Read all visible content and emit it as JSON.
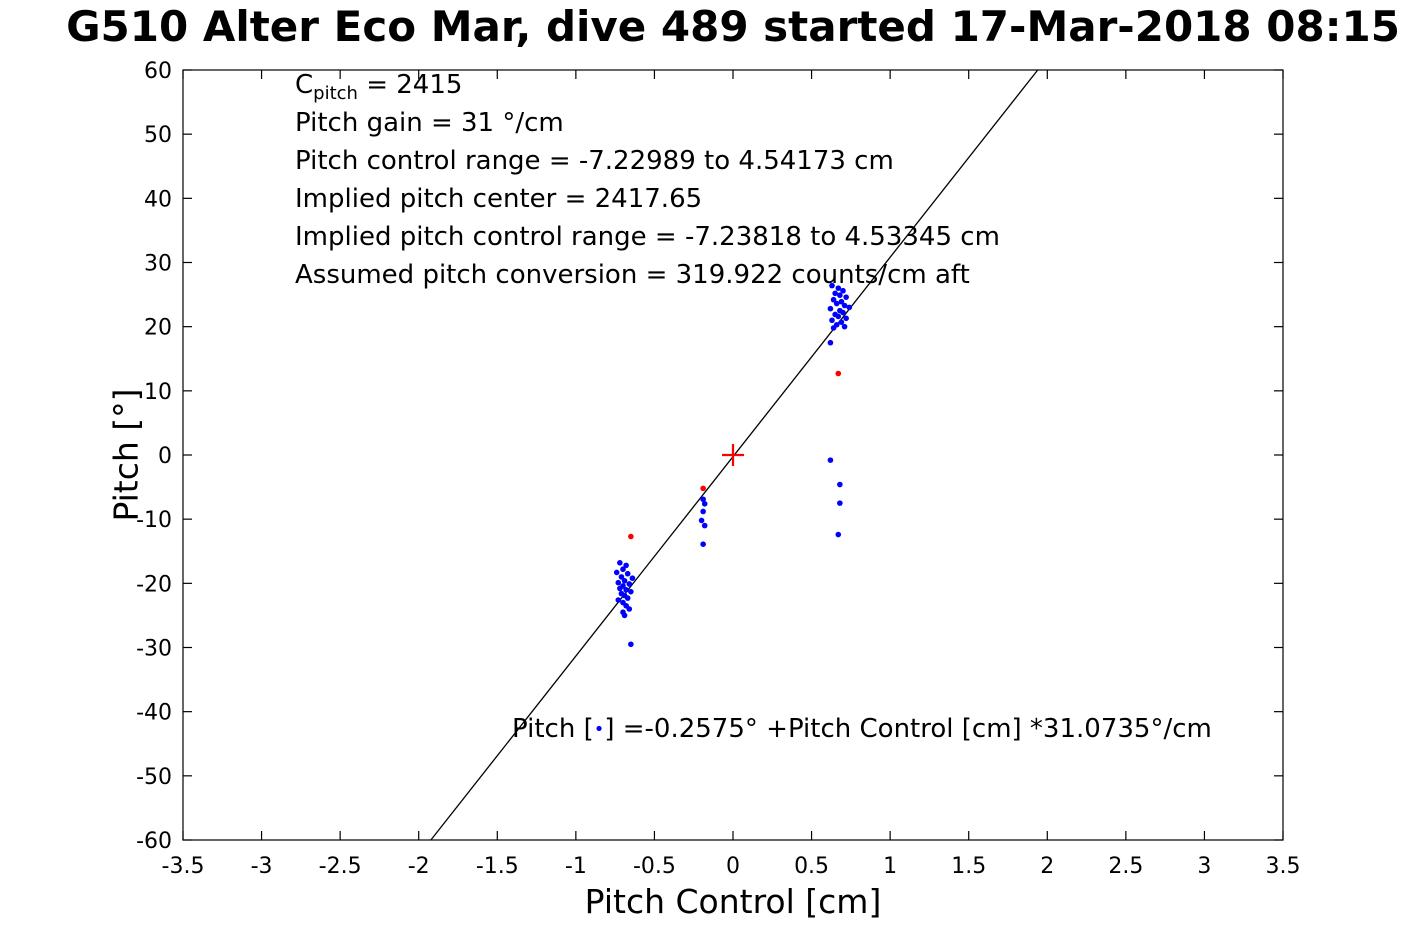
{
  "annotations": {
    "cpitch_base": "C",
    "cpitch_sub": "pitch",
    "cpitch_rest": " = 2415",
    "lines": [
      "Pitch gain = 31 °/cm",
      "Pitch control range = -7.22989 to 4.54173 cm",
      "Implied pitch center = 2417.65",
      "Implied pitch control range = -7.23818 to 4.53345 cm",
      "Assumed pitch conversion = 319.922 counts/cm aft"
    ],
    "equation_prefix": "Pitch [",
    "equation_marker": "•",
    "equation_suffix": "] =-0.2575° +Pitch Control [cm] *31.0735°/cm"
  },
  "chart_data": {
    "type": "scatter",
    "title": "G510 Alter Eco Mar, dive 489 started 17-Mar-2018 08:15",
    "xlabel": "Pitch Control [cm]",
    "ylabel": "Pitch [°]",
    "xlim": [
      -3.5,
      3.5
    ],
    "ylim": [
      -60,
      60
    ],
    "xticks": [
      -3.5,
      -3,
      -2.5,
      -2,
      -1.5,
      -1,
      -0.5,
      0,
      0.5,
      1,
      1.5,
      2,
      2.5,
      3,
      3.5
    ],
    "yticks": [
      -60,
      -50,
      -40,
      -30,
      -20,
      -10,
      0,
      10,
      20,
      30,
      40,
      50,
      60
    ],
    "grid": false,
    "box": true,
    "fit_line": {
      "slope": 31.0735,
      "intercept": -0.2575,
      "color": "#000000"
    },
    "series": [
      {
        "name": "pitch-observations",
        "marker": "dot",
        "color": "#0000ff",
        "points": [
          [
            -0.72,
            -16.8
          ],
          [
            -0.68,
            -17.2
          ],
          [
            -0.7,
            -17.8
          ],
          [
            -0.74,
            -18.3
          ],
          [
            -0.67,
            -18.5
          ],
          [
            -0.71,
            -19.0
          ],
          [
            -0.64,
            -19.2
          ],
          [
            -0.69,
            -19.6
          ],
          [
            -0.73,
            -19.9
          ],
          [
            -0.66,
            -20.1
          ],
          [
            -0.7,
            -20.4
          ],
          [
            -0.72,
            -20.8
          ],
          [
            -0.68,
            -21.0
          ],
          [
            -0.65,
            -21.3
          ],
          [
            -0.71,
            -21.6
          ],
          [
            -0.69,
            -21.9
          ],
          [
            -0.67,
            -22.3
          ],
          [
            -0.73,
            -22.6
          ],
          [
            -0.7,
            -23.0
          ],
          [
            -0.68,
            -23.5
          ],
          [
            -0.66,
            -24.0
          ],
          [
            -0.7,
            -24.5
          ],
          [
            -0.69,
            -25.0
          ],
          [
            -0.65,
            -29.5
          ],
          [
            -0.19,
            -6.9
          ],
          [
            -0.18,
            -7.6
          ],
          [
            -0.19,
            -8.8
          ],
          [
            -0.2,
            -10.2
          ],
          [
            -0.18,
            -11.0
          ],
          [
            -0.19,
            -13.9
          ],
          [
            0.63,
            26.4
          ],
          [
            0.67,
            26.0
          ],
          [
            0.7,
            25.6
          ],
          [
            0.65,
            25.2
          ],
          [
            0.68,
            24.9
          ],
          [
            0.72,
            24.6
          ],
          [
            0.64,
            24.2
          ],
          [
            0.69,
            23.9
          ],
          [
            0.66,
            23.6
          ],
          [
            0.71,
            23.3
          ],
          [
            0.74,
            23.0
          ],
          [
            0.62,
            22.8
          ],
          [
            0.68,
            22.5
          ],
          [
            0.7,
            22.2
          ],
          [
            0.65,
            21.9
          ],
          [
            0.67,
            21.6
          ],
          [
            0.72,
            21.3
          ],
          [
            0.63,
            21.0
          ],
          [
            0.69,
            20.7
          ],
          [
            0.66,
            20.3
          ],
          [
            0.71,
            20.0
          ],
          [
            0.64,
            19.8
          ],
          [
            0.62,
            17.5
          ],
          [
            0.62,
            -0.8
          ],
          [
            0.68,
            -4.6
          ],
          [
            0.68,
            -7.5
          ],
          [
            0.67,
            -12.4
          ]
        ]
      },
      {
        "name": "flagged-observations",
        "marker": "dot",
        "color": "#ff0000",
        "points": [
          [
            -0.65,
            -12.7
          ],
          [
            -0.19,
            -5.2
          ],
          [
            0.67,
            12.7
          ]
        ]
      },
      {
        "name": "implied-center-marker",
        "marker": "plus",
        "color": "#ff0000",
        "points": [
          [
            0,
            0
          ]
        ]
      }
    ]
  }
}
